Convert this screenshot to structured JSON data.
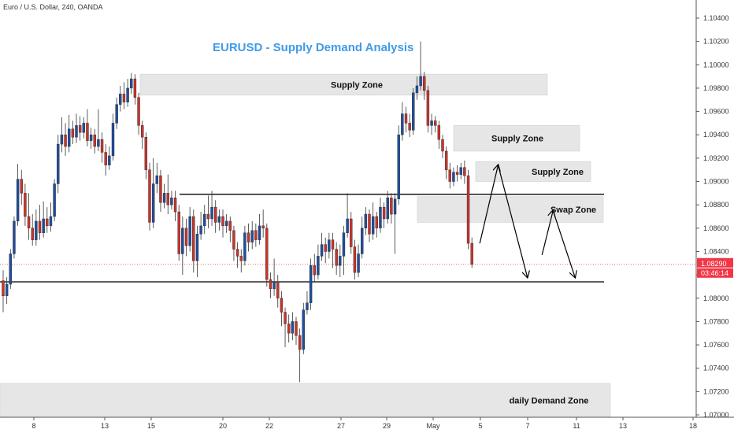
{
  "header": {
    "symbol_line": "Euro / U.S. Dollar, 240, OANDA"
  },
  "chart_data": {
    "type": "candlestick",
    "title": "EURUSD - Supply Demand Analysis",
    "price_axis": {
      "ylim": [
        1.0698,
        1.1057
      ],
      "ticks": [
        "1.10400",
        "1.10200",
        "1.10000",
        "1.09800",
        "1.09600",
        "1.09400",
        "1.09200",
        "1.09000",
        "1.08800",
        "1.08600",
        "1.08400",
        "1.08200",
        "1.08000",
        "1.07800",
        "1.07600",
        "1.07400",
        "1.07200",
        "1.07000"
      ]
    },
    "time_axis": {
      "labels": [
        "8",
        "13",
        "15",
        "20",
        "22",
        "27",
        "29",
        "May",
        "5",
        "7",
        "11",
        "13",
        "18"
      ]
    },
    "current_price": {
      "value": "1.08290",
      "countdown": "03:46:14",
      "color": "#f23645"
    },
    "zones": [
      {
        "label": "Supply Zone",
        "from": 1.0974,
        "to": 1.0992
      },
      {
        "label": "Supply Zone",
        "from": 1.0926,
        "to": 1.0948
      },
      {
        "label": "Supply Zone",
        "from": 1.09,
        "to": 1.0917
      },
      {
        "label": "Swap Zone",
        "from": 1.0865,
        "to": 1.0887
      },
      {
        "label": "daily Demand Zone",
        "from": 1.0698,
        "to": 1.0727
      }
    ],
    "levels": [
      1.0889,
      1.0814
    ],
    "colors": {
      "up": "#1f4e9e",
      "down": "#c9342a",
      "zone": "#e6e6e6",
      "title": "#3f9be8"
    },
    "candles": [
      {
        "o": 1.0815,
        "c": 1.0802,
        "h": 1.0824,
        "l": 1.0788
      },
      {
        "o": 1.0802,
        "c": 1.0812,
        "h": 1.0818,
        "l": 1.0795
      },
      {
        "o": 1.0812,
        "c": 1.0838,
        "h": 1.0842,
        "l": 1.0808
      },
      {
        "o": 1.0838,
        "c": 1.0866,
        "h": 1.087,
        "l": 1.0834
      },
      {
        "o": 1.0866,
        "c": 1.0902,
        "h": 1.0915,
        "l": 1.0862
      },
      {
        "o": 1.0902,
        "c": 1.089,
        "h": 1.091,
        "l": 1.088
      },
      {
        "o": 1.089,
        "c": 1.087,
        "h": 1.0898,
        "l": 1.0862
      },
      {
        "o": 1.087,
        "c": 1.086,
        "h": 1.089,
        "l": 1.085
      },
      {
        "o": 1.086,
        "c": 1.085,
        "h": 1.0872,
        "l": 1.0845
      },
      {
        "o": 1.085,
        "c": 1.0866,
        "h": 1.0876,
        "l": 1.0845
      },
      {
        "o": 1.0866,
        "c": 1.0856,
        "h": 1.088,
        "l": 1.085
      },
      {
        "o": 1.0856,
        "c": 1.0868,
        "h": 1.0883,
        "l": 1.0852
      },
      {
        "o": 1.0868,
        "c": 1.0862,
        "h": 1.0878,
        "l": 1.0856
      },
      {
        "o": 1.0862,
        "c": 1.087,
        "h": 1.0882,
        "l": 1.0857
      },
      {
        "o": 1.087,
        "c": 1.0898,
        "h": 1.0902,
        "l": 1.0866
      },
      {
        "o": 1.0898,
        "c": 1.0932,
        "h": 1.094,
        "l": 1.089
      },
      {
        "o": 1.0932,
        "c": 1.094,
        "h": 1.0955,
        "l": 1.0925
      },
      {
        "o": 1.094,
        "c": 1.093,
        "h": 1.095,
        "l": 1.0922
      },
      {
        "o": 1.093,
        "c": 1.0945,
        "h": 1.0957,
        "l": 1.0925
      },
      {
        "o": 1.0945,
        "c": 1.0938,
        "h": 1.0952,
        "l": 1.0932
      },
      {
        "o": 1.0938,
        "c": 1.0948,
        "h": 1.0958,
        "l": 1.0933
      },
      {
        "o": 1.0948,
        "c": 1.0942,
        "h": 1.0956,
        "l": 1.0935
      },
      {
        "o": 1.0942,
        "c": 1.095,
        "h": 1.0955,
        "l": 1.0937
      },
      {
        "o": 1.095,
        "c": 1.0935,
        "h": 1.0962,
        "l": 1.093
      },
      {
        "o": 1.0935,
        "c": 1.094,
        "h": 1.0946,
        "l": 1.0928
      },
      {
        "o": 1.094,
        "c": 1.093,
        "h": 1.0945,
        "l": 1.0924
      },
      {
        "o": 1.093,
        "c": 1.0936,
        "h": 1.0962,
        "l": 1.0926
      },
      {
        "o": 1.0936,
        "c": 1.0925,
        "h": 1.0942,
        "l": 1.0916
      },
      {
        "o": 1.0925,
        "c": 1.0914,
        "h": 1.0932,
        "l": 1.0905
      },
      {
        "o": 1.0914,
        "c": 1.0922,
        "h": 1.093,
        "l": 1.091
      },
      {
        "o": 1.0922,
        "c": 1.095,
        "h": 1.0958,
        "l": 1.0918
      },
      {
        "o": 1.095,
        "c": 1.0966,
        "h": 1.0972,
        "l": 1.0945
      },
      {
        "o": 1.0966,
        "c": 1.0975,
        "h": 1.0982,
        "l": 1.096
      },
      {
        "o": 1.0975,
        "c": 1.0968,
        "h": 1.0985,
        "l": 1.0962
      },
      {
        "o": 1.0968,
        "c": 1.098,
        "h": 1.0988,
        "l": 1.0964
      },
      {
        "o": 1.098,
        "c": 1.0988,
        "h": 1.0993,
        "l": 1.0975
      },
      {
        "o": 1.0988,
        "c": 1.0972,
        "h": 1.0992,
        "l": 1.0966
      },
      {
        "o": 1.0972,
        "c": 1.0948,
        "h": 1.0976,
        "l": 1.094
      },
      {
        "o": 1.0948,
        "c": 1.0938,
        "h": 1.0952,
        "l": 1.0928
      },
      {
        "o": 1.0938,
        "c": 1.091,
        "h": 1.0942,
        "l": 1.0902
      },
      {
        "o": 1.091,
        "c": 1.0865,
        "h": 1.0916,
        "l": 1.0858
      },
      {
        "o": 1.0865,
        "c": 1.0898,
        "h": 1.092,
        "l": 1.086
      },
      {
        "o": 1.0898,
        "c": 1.0905,
        "h": 1.0916,
        "l": 1.089
      },
      {
        "o": 1.0905,
        "c": 1.0882,
        "h": 1.091,
        "l": 1.0874
      },
      {
        "o": 1.0882,
        "c": 1.089,
        "h": 1.0898,
        "l": 1.0877
      },
      {
        "o": 1.089,
        "c": 1.088,
        "h": 1.0906,
        "l": 1.0872
      },
      {
        "o": 1.088,
        "c": 1.0886,
        "h": 1.0892,
        "l": 1.0876
      },
      {
        "o": 1.0886,
        "c": 1.0874,
        "h": 1.0892,
        "l": 1.0866
      },
      {
        "o": 1.0874,
        "c": 1.0838,
        "h": 1.088,
        "l": 1.0832
      },
      {
        "o": 1.0838,
        "c": 1.086,
        "h": 1.087,
        "l": 1.082
      },
      {
        "o": 1.086,
        "c": 1.0845,
        "h": 1.0868,
        "l": 1.0836
      },
      {
        "o": 1.0845,
        "c": 1.087,
        "h": 1.0878,
        "l": 1.084
      },
      {
        "o": 1.087,
        "c": 1.0832,
        "h": 1.0876,
        "l": 1.0822
      },
      {
        "o": 1.0832,
        "c": 1.0855,
        "h": 1.0862,
        "l": 1.0818
      },
      {
        "o": 1.0855,
        "c": 1.0862,
        "h": 1.0874,
        "l": 1.085
      },
      {
        "o": 1.0862,
        "c": 1.0872,
        "h": 1.088,
        "l": 1.0855
      },
      {
        "o": 1.0872,
        "c": 1.0868,
        "h": 1.0888,
        "l": 1.086
      },
      {
        "o": 1.0868,
        "c": 1.0878,
        "h": 1.0892,
        "l": 1.0862
      },
      {
        "o": 1.0878,
        "c": 1.0865,
        "h": 1.0884,
        "l": 1.0856
      },
      {
        "o": 1.0865,
        "c": 1.087,
        "h": 1.0876,
        "l": 1.0858
      },
      {
        "o": 1.087,
        "c": 1.0862,
        "h": 1.0876,
        "l": 1.0852
      },
      {
        "o": 1.0862,
        "c": 1.0866,
        "h": 1.0872,
        "l": 1.0856
      },
      {
        "o": 1.0866,
        "c": 1.0858,
        "h": 1.087,
        "l": 1.0848
      },
      {
        "o": 1.0858,
        "c": 1.0842,
        "h": 1.0862,
        "l": 1.0832
      },
      {
        "o": 1.0842,
        "c": 1.0836,
        "h": 1.0848,
        "l": 1.0826
      },
      {
        "o": 1.0836,
        "c": 1.0832,
        "h": 1.0842,
        "l": 1.0822
      },
      {
        "o": 1.0832,
        "c": 1.0856,
        "h": 1.0862,
        "l": 1.0828
      },
      {
        "o": 1.0856,
        "c": 1.0848,
        "h": 1.0864,
        "l": 1.084
      },
      {
        "o": 1.0848,
        "c": 1.0858,
        "h": 1.0866,
        "l": 1.0842
      },
      {
        "o": 1.0858,
        "c": 1.085,
        "h": 1.0864,
        "l": 1.0844
      },
      {
        "o": 1.085,
        "c": 1.0862,
        "h": 1.0872,
        "l": 1.0846
      },
      {
        "o": 1.0862,
        "c": 1.086,
        "h": 1.0876,
        "l": 1.0852
      },
      {
        "o": 1.086,
        "c": 1.0816,
        "h": 1.0864,
        "l": 1.081
      },
      {
        "o": 1.0816,
        "c": 1.0808,
        "h": 1.0822,
        "l": 1.08
      },
      {
        "o": 1.0808,
        "c": 1.0814,
        "h": 1.0834,
        "l": 1.0802
      },
      {
        "o": 1.0814,
        "c": 1.08,
        "h": 1.082,
        "l": 1.0792
      },
      {
        "o": 1.08,
        "c": 1.0788,
        "h": 1.0806,
        "l": 1.0776
      },
      {
        "o": 1.0788,
        "c": 1.0778,
        "h": 1.0792,
        "l": 1.0758
      },
      {
        "o": 1.0778,
        "c": 1.077,
        "h": 1.0786,
        "l": 1.0762
      },
      {
        "o": 1.077,
        "c": 1.078,
        "h": 1.0788,
        "l": 1.0764
      },
      {
        "o": 1.078,
        "c": 1.0768,
        "h": 1.0784,
        "l": 1.076
      },
      {
        "o": 1.0768,
        "c": 1.0756,
        "h": 1.0774,
        "l": 1.0728
      },
      {
        "o": 1.0756,
        "c": 1.079,
        "h": 1.0796,
        "l": 1.0752
      },
      {
        "o": 1.079,
        "c": 1.0796,
        "h": 1.0806,
        "l": 1.0786
      },
      {
        "o": 1.0796,
        "c": 1.0828,
        "h": 1.0834,
        "l": 1.079
      },
      {
        "o": 1.0828,
        "c": 1.082,
        "h": 1.0838,
        "l": 1.0814
      },
      {
        "o": 1.082,
        "c": 1.0836,
        "h": 1.0846,
        "l": 1.0816
      },
      {
        "o": 1.0836,
        "c": 1.0846,
        "h": 1.0856,
        "l": 1.0832
      },
      {
        "o": 1.0846,
        "c": 1.084,
        "h": 1.0852,
        "l": 1.083
      },
      {
        "o": 1.084,
        "c": 1.085,
        "h": 1.0856,
        "l": 1.0834
      },
      {
        "o": 1.085,
        "c": 1.0842,
        "h": 1.0856,
        "l": 1.0826
      },
      {
        "o": 1.0842,
        "c": 1.0828,
        "h": 1.0848,
        "l": 1.082
      },
      {
        "o": 1.0828,
        "c": 1.0836,
        "h": 1.0846,
        "l": 1.0818
      },
      {
        "o": 1.0836,
        "c": 1.0856,
        "h": 1.0862,
        "l": 1.082
      },
      {
        "o": 1.0856,
        "c": 1.0868,
        "h": 1.089,
        "l": 1.0852
      },
      {
        "o": 1.0868,
        "c": 1.0844,
        "h": 1.0874,
        "l": 1.0838
      },
      {
        "o": 1.0844,
        "c": 1.0822,
        "h": 1.085,
        "l": 1.0816
      },
      {
        "o": 1.0822,
        "c": 1.0838,
        "h": 1.0846,
        "l": 1.0818
      },
      {
        "o": 1.0838,
        "c": 1.086,
        "h": 1.087,
        "l": 1.0834
      },
      {
        "o": 1.086,
        "c": 1.0872,
        "h": 1.0878,
        "l": 1.0854
      },
      {
        "o": 1.0872,
        "c": 1.0855,
        "h": 1.0876,
        "l": 1.0848
      },
      {
        "o": 1.0855,
        "c": 1.087,
        "h": 1.0882,
        "l": 1.085
      },
      {
        "o": 1.087,
        "c": 1.086,
        "h": 1.0874,
        "l": 1.0852
      },
      {
        "o": 1.086,
        "c": 1.0878,
        "h": 1.0886,
        "l": 1.0856
      },
      {
        "o": 1.0878,
        "c": 1.0868,
        "h": 1.0882,
        "l": 1.086
      },
      {
        "o": 1.0868,
        "c": 1.0886,
        "h": 1.0892,
        "l": 1.0864
      },
      {
        "o": 1.0886,
        "c": 1.0872,
        "h": 1.089,
        "l": 1.0864
      },
      {
        "o": 1.0872,
        "c": 1.0885,
        "h": 1.089,
        "l": 1.0838
      },
      {
        "o": 1.0885,
        "c": 1.094,
        "h": 1.0948,
        "l": 1.088
      },
      {
        "o": 1.094,
        "c": 1.0958,
        "h": 1.0968,
        "l": 1.0935
      },
      {
        "o": 1.0958,
        "c": 1.095,
        "h": 1.0964,
        "l": 1.0942
      },
      {
        "o": 1.095,
        "c": 1.0944,
        "h": 1.0958,
        "l": 1.0938
      },
      {
        "o": 1.0944,
        "c": 1.0976,
        "h": 1.098,
        "l": 1.094
      },
      {
        "o": 1.0976,
        "c": 1.0982,
        "h": 1.099,
        "l": 1.097
      },
      {
        "o": 1.0982,
        "c": 1.099,
        "h": 1.102,
        "l": 1.0978
      },
      {
        "o": 1.099,
        "c": 1.0978,
        "h": 1.0994,
        "l": 1.097
      },
      {
        "o": 1.0978,
        "c": 1.0948,
        "h": 1.0982,
        "l": 1.0942
      },
      {
        "o": 1.0948,
        "c": 1.0952,
        "h": 1.0958,
        "l": 1.094
      },
      {
        "o": 1.0952,
        "c": 1.0948,
        "h": 1.0956,
        "l": 1.0942
      },
      {
        "o": 1.0948,
        "c": 1.0936,
        "h": 1.0952,
        "l": 1.0928
      },
      {
        "o": 1.0936,
        "c": 1.0926,
        "h": 1.094,
        "l": 1.092
      },
      {
        "o": 1.0926,
        "c": 1.091,
        "h": 1.093,
        "l": 1.0902
      },
      {
        "o": 1.091,
        "c": 1.09,
        "h": 1.0916,
        "l": 1.0894
      },
      {
        "o": 1.09,
        "c": 1.0908,
        "h": 1.0912,
        "l": 1.0896
      },
      {
        "o": 1.0908,
        "c": 1.0906,
        "h": 1.0914,
        "l": 1.09
      },
      {
        "o": 1.0906,
        "c": 1.0912,
        "h": 1.0916,
        "l": 1.0902
      },
      {
        "o": 1.0912,
        "c": 1.0905,
        "h": 1.0918,
        "l": 1.0898
      },
      {
        "o": 1.0905,
        "c": 1.0847,
        "h": 1.091,
        "l": 1.0842
      },
      {
        "o": 1.0847,
        "c": 1.0829,
        "h": 1.0852,
        "l": 1.0826
      }
    ],
    "projection_paths": [
      [
        [
          1.0847,
          0
        ],
        [
          1.0914,
          5
        ],
        [
          1.0818,
          13
        ]
      ],
      [
        [
          1.0837,
          17
        ],
        [
          1.0875,
          20
        ],
        [
          1.0818,
          26
        ]
      ]
    ]
  }
}
